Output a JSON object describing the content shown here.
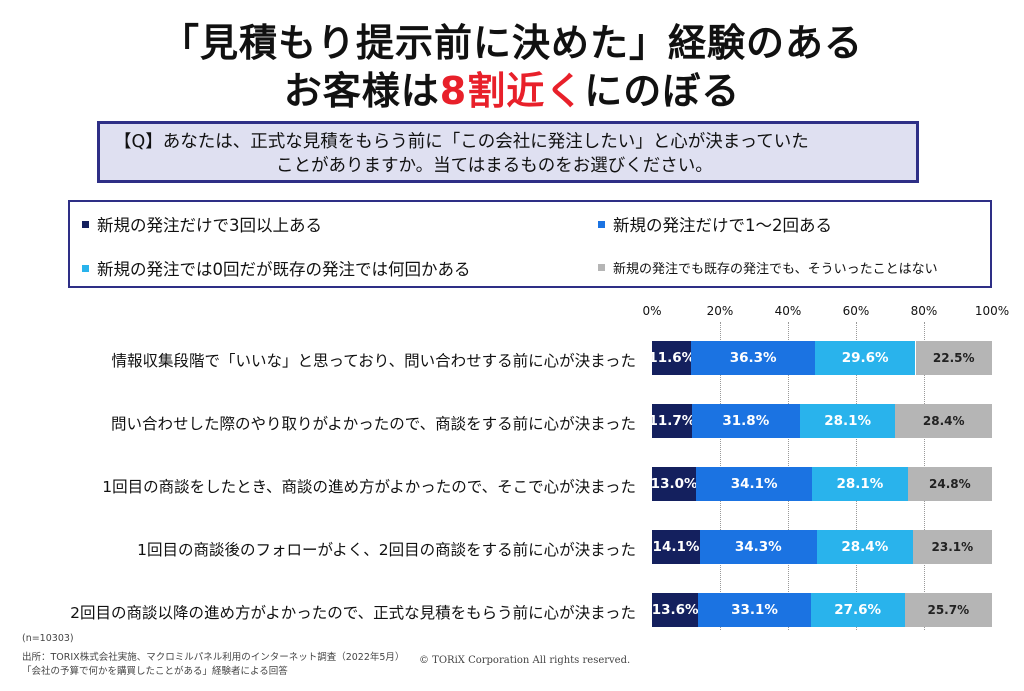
{
  "title": {
    "line1": "「見積もり提示前に決めた」経験のある",
    "line2_pre": "お客様は",
    "line2_highlight": "8割近く",
    "line2_post": "にのぼる"
  },
  "question": {
    "line1": "【Q】あなたは、正式な見積をもらう前に「この会社に発注したい」と心が決まっていた",
    "line2": "ことがありますか。当てはまるものをお選びください。"
  },
  "colors": {
    "navy": "#14205e",
    "blue": "#1b73e2",
    "cyan": "#29b3ec",
    "gray": "#b5b5b5",
    "accent_red": "#e8202a",
    "frame": "#2e2f86"
  },
  "chart_data": {
    "type": "bar",
    "orientation": "horizontal",
    "stacked": true,
    "xlim": [
      0,
      100
    ],
    "xticks": [
      "0%",
      "20%",
      "40%",
      "60%",
      "80%",
      "100%"
    ],
    "legend_position": "top",
    "categories": [
      "情報収集段階で「いいな」と思っており、問い合わせする前に心が決まった",
      "問い合わせした際のやり取りがよかったので、商談をする前に心が決まった",
      "1回目の商談をしたとき、商談の進め方がよかったので、そこで心が決まった",
      "1回目の商談後のフォローがよく、2回目の商談をする前に心が決まった",
      "2回目の商談以降の進め方がよかったので、正式な見積をもらう前に心が決まった"
    ],
    "series": [
      {
        "name": "新規の発注だけで3回以上ある",
        "color": "#14205e",
        "values": [
          11.6,
          11.7,
          13.0,
          14.1,
          13.6
        ],
        "labels": [
          "11.6%",
          "11.7%",
          "13.0%",
          "14.1%",
          "13.6%"
        ]
      },
      {
        "name": "新規の発注だけで1～2回ある",
        "color": "#1b73e2",
        "values": [
          36.3,
          31.8,
          34.1,
          34.3,
          33.1
        ],
        "labels": [
          "36.3%",
          "31.8%",
          "34.1%",
          "34.3%",
          "33.1%"
        ]
      },
      {
        "name": "新規の発注では0回だが既存の発注では何回かある",
        "color": "#29b3ec",
        "values": [
          29.6,
          28.1,
          28.1,
          28.4,
          27.6
        ],
        "labels": [
          "29.6%",
          "28.1%",
          "28.1%",
          "28.4%",
          "27.6%"
        ]
      },
      {
        "name": "新規の発注でも既存の発注でも、そういったことはない",
        "color": "#b5b5b5",
        "values": [
          22.5,
          28.4,
          24.8,
          23.1,
          25.7
        ],
        "labels": [
          "22.5%",
          "28.4%",
          "24.8%",
          "23.1%",
          "25.7%"
        ]
      }
    ]
  },
  "footnotes": {
    "n": "(n=10303)",
    "source": "出所：TORIX株式会社実施、マクロミルパネル利用のインターネット調査（2022年5月）",
    "respondents": "「会社の予算で何かを購買したことがある」経験者による回答",
    "copyright": "© TORiX Corporation All rights reserved."
  }
}
